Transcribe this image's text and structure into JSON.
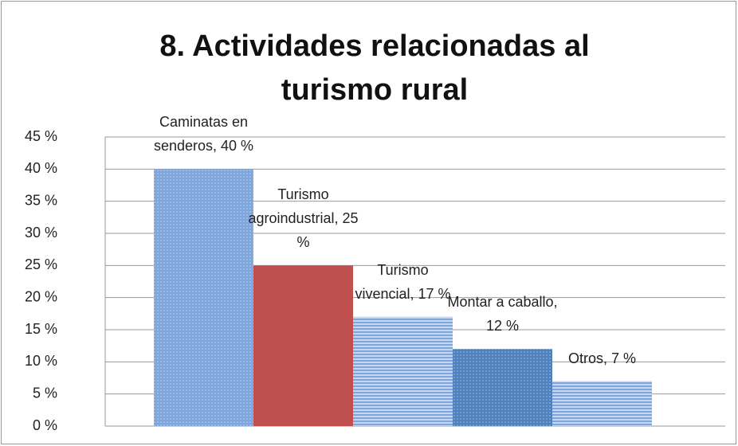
{
  "chart_data": {
    "type": "bar",
    "title": [
      "8.  Actividades relacionadas al",
      "turismo rural"
    ],
    "values": [
      40,
      25,
      17,
      12,
      7
    ],
    "value_labels": [
      "Caminatas en senderos, 40 %",
      "Turismo agroindustrial, 25 %",
      "Turismo vivencial, 17 %",
      "Montar a caballo, 12 %",
      "Otros, 7 %"
    ],
    "colors": [
      "#7ea6dc",
      "#c0504d",
      "#7ea6dc",
      "#4f81bd",
      "#7ea6dc"
    ],
    "patterns": [
      "dots",
      "solid",
      "stripes",
      "dots",
      "stripes"
    ],
    "ylim": [
      0,
      45
    ],
    "yticks": [
      {
        "value": 0,
        "label": "0 %"
      },
      {
        "value": 5,
        "label": "5 %"
      },
      {
        "value": 10,
        "label": "10 %"
      },
      {
        "value": 15,
        "label": "15 %"
      },
      {
        "value": 20,
        "label": "20 %"
      },
      {
        "value": 25,
        "label": "25 %"
      },
      {
        "value": 30,
        "label": "30 %"
      },
      {
        "value": 35,
        "label": "35 %"
      },
      {
        "value": 40,
        "label": "40 %"
      },
      {
        "value": 45,
        "label": "45 %"
      }
    ],
    "grid": true
  }
}
